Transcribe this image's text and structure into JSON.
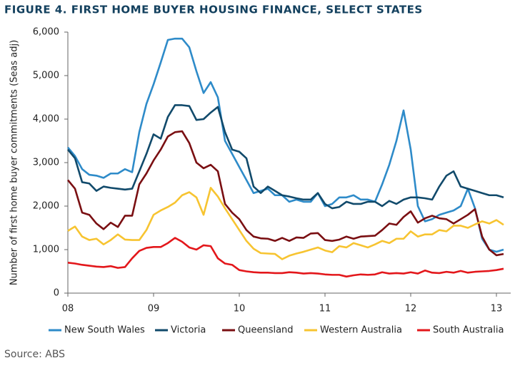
{
  "chart_data": {
    "type": "line",
    "title": "FIGURE 4. FIRST HOME BUYER HOUSING FINANCE, SELECT STATES",
    "y_label": "Number of first home buyer commitments (Seas adj)",
    "source": "Source: ABS",
    "categories": [
      "08",
      null,
      null,
      null,
      null,
      null,
      null,
      null,
      null,
      null,
      null,
      null,
      "09",
      null,
      null,
      null,
      null,
      null,
      null,
      null,
      null,
      null,
      null,
      null,
      "10",
      null,
      null,
      null,
      null,
      null,
      null,
      null,
      null,
      null,
      null,
      null,
      "11",
      null,
      null,
      null,
      null,
      null,
      null,
      null,
      null,
      null,
      null,
      null,
      "12",
      null,
      null,
      null,
      null,
      null,
      null,
      null,
      null,
      null,
      null,
      null,
      "13",
      null
    ],
    "ylim": [
      0,
      6000
    ],
    "yticks": [
      0,
      {
        "value": 1000,
        "label": "1,000"
      },
      {
        "value": 2000,
        "label": "2,000"
      },
      {
        "value": 3000,
        "label": "3,000"
      },
      {
        "value": 4000,
        "label": "4,000"
      },
      {
        "value": 5000,
        "label": "5,000"
      },
      {
        "value": 6000,
        "label": "6,000"
      }
    ],
    "grid": false,
    "legend": "bottom",
    "series": [
      {
        "name": "New South Wales",
        "color": "#2e8bc9",
        "values": [
          3350,
          3150,
          2850,
          2720,
          2700,
          2650,
          2750,
          2750,
          2850,
          2780,
          3700,
          4350,
          4800,
          5300,
          5820,
          5850,
          5850,
          5650,
          5100,
          4600,
          4850,
          4500,
          3500,
          3200,
          2900,
          2600,
          2300,
          2350,
          2400,
          2250,
          2250,
          2100,
          2150,
          2100,
          2100,
          2300,
          2000,
          2050,
          2200,
          2200,
          2250,
          2150,
          2150,
          2100,
          2500,
          2950,
          3500,
          4200,
          3300,
          2000,
          1650,
          1700,
          1800,
          1850,
          1900,
          2000,
          2400,
          1950,
          1250,
          1000,
          950,
          1000
        ]
      },
      {
        "name": "Victoria",
        "color": "#114a6b",
        "values": [
          3300,
          3100,
          2550,
          2520,
          2350,
          2450,
          2420,
          2400,
          2380,
          2400,
          2800,
          3200,
          3650,
          3550,
          4050,
          4320,
          4320,
          4300,
          3980,
          4000,
          4150,
          4280,
          3700,
          3300,
          3250,
          3100,
          2450,
          2300,
          2450,
          2350,
          2250,
          2220,
          2180,
          2150,
          2150,
          2300,
          2050,
          1950,
          1980,
          2100,
          2050,
          2050,
          2100,
          2100,
          2000,
          2120,
          2050,
          2150,
          2200,
          2200,
          2180,
          2150,
          2450,
          2700,
          2800,
          2450,
          2400,
          2350,
          2300,
          2250,
          2250,
          2200
        ]
      },
      {
        "name": "Queensland",
        "color": "#7a0f12",
        "values": [
          2600,
          2400,
          1850,
          1800,
          1600,
          1470,
          1620,
          1520,
          1780,
          1780,
          2500,
          2750,
          3050,
          3300,
          3600,
          3700,
          3720,
          3450,
          3000,
          2870,
          2950,
          2800,
          2050,
          1850,
          1700,
          1450,
          1300,
          1260,
          1250,
          1200,
          1270,
          1200,
          1280,
          1270,
          1370,
          1380,
          1220,
          1200,
          1230,
          1300,
          1250,
          1300,
          1310,
          1320,
          1450,
          1600,
          1570,
          1750,
          1880,
          1620,
          1720,
          1780,
          1720,
          1700,
          1600,
          1700,
          1800,
          1930,
          1300,
          1000,
          870,
          900
        ]
      },
      {
        "name": "Western Australia",
        "color": "#f7c431",
        "values": [
          1430,
          1530,
          1300,
          1220,
          1250,
          1120,
          1220,
          1350,
          1230,
          1220,
          1220,
          1450,
          1800,
          1900,
          1980,
          2080,
          2250,
          2320,
          2200,
          1800,
          2420,
          2220,
          1950,
          1700,
          1450,
          1200,
          1020,
          920,
          910,
          900,
          780,
          860,
          910,
          950,
          1000,
          1050,
          980,
          940,
          1080,
          1050,
          1150,
          1100,
          1050,
          1120,
          1200,
          1150,
          1250,
          1250,
          1420,
          1300,
          1350,
          1350,
          1450,
          1420,
          1550,
          1550,
          1500,
          1580,
          1650,
          1600,
          1680,
          1570
        ]
      },
      {
        "name": "South Australia",
        "color": "#e3171b",
        "values": [
          700,
          680,
          650,
          630,
          610,
          600,
          620,
          580,
          600,
          800,
          970,
          1040,
          1060,
          1060,
          1150,
          1270,
          1180,
          1050,
          1000,
          1100,
          1080,
          800,
          680,
          650,
          530,
          500,
          480,
          470,
          470,
          460,
          460,
          480,
          470,
          450,
          460,
          450,
          430,
          420,
          420,
          380,
          410,
          430,
          420,
          430,
          480,
          450,
          460,
          450,
          480,
          450,
          520,
          470,
          460,
          490,
          470,
          510,
          470,
          490,
          500,
          510,
          530,
          560
        ]
      }
    ]
  }
}
